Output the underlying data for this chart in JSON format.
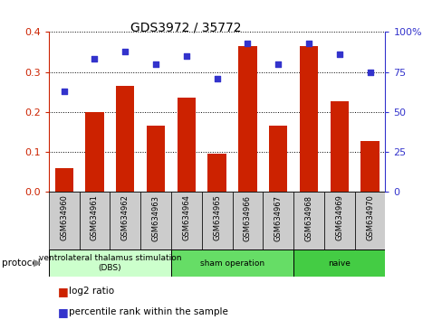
{
  "title": "GDS3972 / 35772",
  "samples": [
    "GSM634960",
    "GSM634961",
    "GSM634962",
    "GSM634963",
    "GSM634964",
    "GSM634965",
    "GSM634966",
    "GSM634967",
    "GSM634968",
    "GSM634969",
    "GSM634970"
  ],
  "log2_ratio": [
    0.06,
    0.2,
    0.265,
    0.165,
    0.235,
    0.095,
    0.365,
    0.165,
    0.365,
    0.228,
    0.127
  ],
  "percentile_rank": [
    63,
    83,
    88,
    80,
    85,
    71,
    93,
    80,
    93,
    86,
    75
  ],
  "bar_color": "#cc2200",
  "dot_color": "#3333cc",
  "ylim_left": [
    0,
    0.4
  ],
  "ylim_right": [
    0,
    100
  ],
  "yticks_left": [
    0,
    0.1,
    0.2,
    0.3,
    0.4
  ],
  "yticks_right": [
    0,
    25,
    50,
    75,
    100
  ],
  "ytick_labels_right": [
    "0",
    "25",
    "50",
    "75",
    "100%"
  ],
  "groups": [
    {
      "label": "ventrolateral thalamus stimulation\n(DBS)",
      "start": 0,
      "end": 3,
      "color": "#ccffcc"
    },
    {
      "label": "sham operation",
      "start": 4,
      "end": 7,
      "color": "#66dd66"
    },
    {
      "label": "naive",
      "start": 8,
      "end": 10,
      "color": "#44cc44"
    }
  ],
  "protocol_label": "protocol",
  "legend_bar_label": "log2 ratio",
  "legend_dot_label": "percentile rank within the sample",
  "background_color": "#ffffff",
  "plot_bg_color": "#ffffff",
  "sample_box_color": "#cccccc",
  "bar_width": 0.6
}
